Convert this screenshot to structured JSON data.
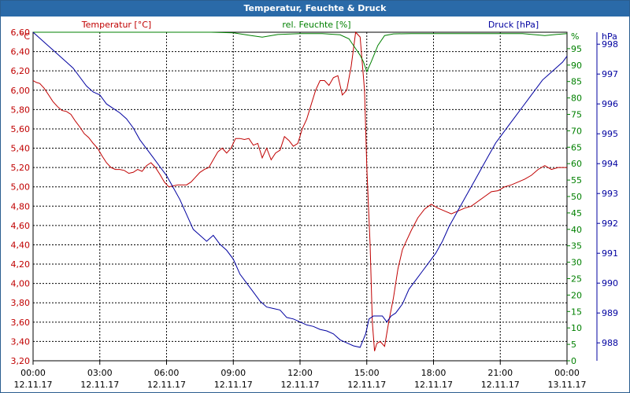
{
  "window": {
    "title": "Temperatur, Feuchte & Druck"
  },
  "colors": {
    "title_bar": "#2a6aa8",
    "temperature": "#c00000",
    "humidity": "#008000",
    "pressure": "#0000a0",
    "grid": "#000000"
  },
  "chart_data": {
    "type": "line",
    "title": "Temperatur, Feuchte & Druck",
    "grid": true,
    "legend_placement": "top",
    "x_ticks": [
      {
        "time": "00:00",
        "date": "12.11.17"
      },
      {
        "time": "03:00",
        "date": "12.11.17"
      },
      {
        "time": "06:00",
        "date": "12.11.17"
      },
      {
        "time": "09:00",
        "date": "12.11.17"
      },
      {
        "time": "12:00",
        "date": "12.11.17"
      },
      {
        "time": "15:00",
        "date": "12.11.17"
      },
      {
        "time": "18:00",
        "date": "12.11.17"
      },
      {
        "time": "21:00",
        "date": "12.11.17"
      },
      {
        "time": "00:00",
        "date": "13.11.17"
      }
    ],
    "axes": {
      "temperature": {
        "unit": "°C",
        "ylim": [
          3.2,
          6.6
        ],
        "ticks": [
          "6,60",
          "6,40",
          "6,20",
          "6,00",
          "5,80",
          "5,60",
          "5,40",
          "5,20",
          "5,00",
          "4,80",
          "4,60",
          "4,40",
          "4,20",
          "4,00",
          "3,80",
          "3,60",
          "3,40",
          "3,20"
        ]
      },
      "humidity": {
        "unit": "%",
        "ylim": [
          0,
          100
        ],
        "ticks": [
          "95",
          "90",
          "85",
          "80",
          "75",
          "70",
          "65",
          "60",
          "55",
          "50",
          "45",
          "40",
          "35",
          "30",
          "25",
          "20",
          "15",
          "10",
          "5",
          "0"
        ]
      },
      "pressure": {
        "unit": "hPa",
        "ylim": [
          987.4,
          998.4
        ],
        "ticks": [
          "998",
          "997",
          "996",
          "995",
          "994",
          "993",
          "992",
          "991",
          "990",
          "989",
          "988"
        ]
      }
    },
    "series": [
      {
        "name": "Temperatur [°C]",
        "axis": "temperature",
        "x": [
          0.0,
          0.15,
          0.3,
          0.5,
          0.7,
          0.9,
          1.1,
          1.3,
          1.5,
          1.7,
          1.9,
          2.1,
          2.3,
          2.5,
          2.7,
          2.9,
          3.1,
          3.3,
          3.5,
          3.7,
          3.9,
          4.1,
          4.3,
          4.5,
          4.7,
          4.9,
          5.1,
          5.3,
          5.5,
          5.7,
          5.9,
          6.1,
          6.3,
          6.5,
          6.7,
          6.9,
          7.1,
          7.3,
          7.5,
          7.7,
          7.9,
          8.1,
          8.3,
          8.5,
          8.7,
          8.9,
          9.1,
          9.3,
          9.5,
          9.7,
          9.9,
          10.1,
          10.3,
          10.5,
          10.7,
          10.9,
          11.1,
          11.3,
          11.5,
          11.7,
          11.9,
          12.1,
          12.3,
          12.5,
          12.7,
          12.9,
          13.1,
          13.3,
          13.5,
          13.7,
          13.9,
          14.1,
          14.3,
          14.5,
          14.7,
          14.9,
          15.0,
          15.15,
          15.25,
          15.35,
          15.45,
          15.6,
          15.8,
          16.0,
          16.2,
          16.4,
          16.6,
          16.8,
          17.0,
          17.3,
          17.6,
          17.9,
          18.2,
          18.5,
          18.8,
          19.1,
          19.4,
          19.7,
          20.0,
          20.3,
          20.6,
          20.9,
          21.2,
          21.5,
          21.8,
          22.1,
          22.4,
          22.7,
          23.0,
          23.3,
          23.6,
          23.9,
          24.0
        ],
        "y": [
          6.1,
          6.08,
          6.07,
          6.02,
          5.95,
          5.88,
          5.83,
          5.79,
          5.78,
          5.75,
          5.68,
          5.62,
          5.55,
          5.51,
          5.45,
          5.4,
          5.32,
          5.25,
          5.2,
          5.18,
          5.18,
          5.17,
          5.14,
          5.15,
          5.18,
          5.16,
          5.22,
          5.25,
          5.2,
          5.13,
          5.05,
          5.0,
          5.01,
          5.02,
          5.02,
          5.02,
          5.05,
          5.1,
          5.15,
          5.18,
          5.2,
          5.28,
          5.36,
          5.4,
          5.35,
          5.4,
          5.5,
          5.5,
          5.49,
          5.5,
          5.43,
          5.45,
          5.3,
          5.4,
          5.28,
          5.35,
          5.38,
          5.52,
          5.48,
          5.42,
          5.45,
          5.6,
          5.7,
          5.85,
          6.0,
          6.1,
          6.1,
          6.05,
          6.13,
          6.15,
          5.95,
          6.0,
          6.25,
          6.6,
          6.55,
          6.0,
          5.2,
          4.4,
          3.6,
          3.3,
          3.38,
          3.4,
          3.35,
          3.62,
          3.85,
          4.15,
          4.35,
          4.45,
          4.55,
          4.68,
          4.77,
          4.82,
          4.78,
          4.75,
          4.72,
          4.75,
          4.78,
          4.8,
          4.85,
          4.9,
          4.95,
          4.96,
          5.0,
          5.02,
          5.05,
          5.08,
          5.12,
          5.18,
          5.22,
          5.18,
          5.2,
          5.2,
          5.2
        ]
      },
      {
        "name": "rel. Feuchte [%]",
        "axis": "humidity",
        "x": [
          0.0,
          2.0,
          4.0,
          6.0,
          8.0,
          9.0,
          9.8,
          10.3,
          11.0,
          12.0,
          13.0,
          13.8,
          14.2,
          14.5,
          14.7,
          14.85,
          15.0,
          15.2,
          15.5,
          15.8,
          16.2,
          17.0,
          20.0,
          22.0,
          23.0,
          23.5,
          24.0
        ],
        "y": [
          100,
          100,
          100,
          100,
          100,
          99.8,
          99,
          98.5,
          99.3,
          99.6,
          99.6,
          99.2,
          98,
          95,
          93,
          91,
          88,
          91,
          96,
          99,
          99.5,
          99.6,
          99.6,
          99.6,
          99,
          99.3,
          99.6
        ]
      },
      {
        "name": "Druck [hPa]",
        "axis": "pressure",
        "x": [
          0.0,
          0.3,
          0.6,
          0.9,
          1.2,
          1.5,
          1.8,
          2.1,
          2.4,
          2.7,
          3.0,
          3.3,
          3.6,
          3.9,
          4.2,
          4.5,
          4.8,
          5.1,
          5.4,
          5.7,
          6.0,
          6.3,
          6.6,
          6.9,
          7.2,
          7.5,
          7.8,
          8.1,
          8.4,
          8.7,
          9.0,
          9.3,
          9.6,
          9.9,
          10.2,
          10.5,
          10.8,
          11.1,
          11.4,
          11.7,
          12.0,
          12.3,
          12.6,
          12.9,
          13.2,
          13.5,
          13.8,
          14.1,
          14.4,
          14.7,
          14.95,
          15.1,
          15.3,
          15.5,
          15.7,
          15.9,
          16.1,
          16.3,
          16.6,
          16.9,
          17.2,
          17.5,
          17.8,
          18.1,
          18.4,
          18.7,
          19.0,
          19.3,
          19.6,
          19.9,
          20.2,
          20.5,
          20.8,
          21.1,
          21.4,
          21.7,
          22.0,
          22.3,
          22.6,
          22.9,
          23.2,
          23.5,
          23.8,
          24.0
        ],
        "y": [
          998.4,
          998.2,
          998.0,
          997.8,
          997.6,
          997.4,
          997.2,
          996.9,
          996.6,
          996.4,
          996.3,
          996.0,
          995.85,
          995.7,
          995.5,
          995.2,
          994.8,
          994.5,
          994.2,
          993.9,
          993.6,
          993.2,
          992.8,
          992.3,
          991.8,
          991.6,
          991.4,
          991.6,
          991.3,
          991.1,
          990.8,
          990.3,
          990.0,
          989.7,
          989.4,
          989.2,
          989.15,
          989.1,
          988.85,
          988.8,
          988.7,
          988.6,
          988.55,
          988.45,
          988.4,
          988.3,
          988.1,
          988.0,
          987.9,
          987.85,
          988.3,
          988.8,
          988.9,
          988.9,
          988.9,
          988.7,
          988.9,
          989.0,
          989.3,
          989.8,
          990.1,
          990.4,
          990.7,
          991.0,
          991.4,
          991.9,
          992.3,
          992.7,
          993.1,
          993.5,
          993.9,
          994.3,
          994.7,
          995.0,
          995.3,
          995.6,
          995.9,
          996.2,
          996.5,
          996.8,
          997.0,
          997.2,
          997.4,
          997.6
        ]
      }
    ]
  }
}
